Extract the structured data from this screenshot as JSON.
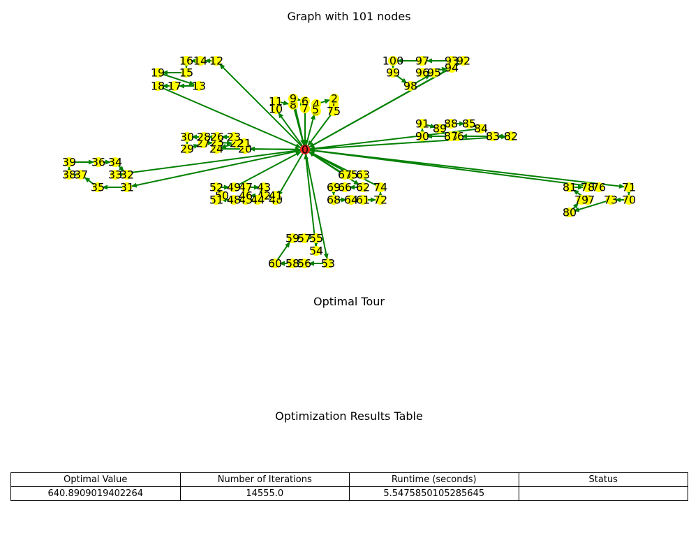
{
  "graph_title": "Graph with 101 nodes",
  "tour_title": "Optimal Tour",
  "table_title": "Optimization Results Table",
  "colors": {
    "depot": "#e8231f",
    "node": "#ffff00",
    "edge": "#008000"
  },
  "results_table": {
    "headers": [
      "Optimal Value",
      "Number of Iterations",
      "Runtime (seconds)",
      "Status"
    ],
    "values": [
      "640.8909019402264",
      "14555.0",
      "5.5475850105285645",
      ""
    ]
  },
  "nodes": [
    {
      "id": "0",
      "depot": true
    },
    {
      "id": "1"
    },
    {
      "id": "2"
    },
    {
      "id": "3"
    },
    {
      "id": "4"
    },
    {
      "id": "5"
    },
    {
      "id": "6"
    },
    {
      "id": "7"
    },
    {
      "id": "8"
    },
    {
      "id": "9"
    },
    {
      "id": "10"
    },
    {
      "id": "11"
    },
    {
      "id": "12"
    },
    {
      "id": "13"
    },
    {
      "id": "14"
    },
    {
      "id": "15"
    },
    {
      "id": "16"
    },
    {
      "id": "17"
    },
    {
      "id": "18"
    },
    {
      "id": "19"
    },
    {
      "id": "20"
    },
    {
      "id": "21"
    },
    {
      "id": "22"
    },
    {
      "id": "23"
    },
    {
      "id": "24"
    },
    {
      "id": "25"
    },
    {
      "id": "26"
    },
    {
      "id": "27"
    },
    {
      "id": "28"
    },
    {
      "id": "29"
    },
    {
      "id": "30"
    },
    {
      "id": "31"
    },
    {
      "id": "32"
    },
    {
      "id": "33"
    },
    {
      "id": "34"
    },
    {
      "id": "35"
    },
    {
      "id": "36"
    },
    {
      "id": "37"
    },
    {
      "id": "38"
    },
    {
      "id": "39"
    },
    {
      "id": "40"
    },
    {
      "id": "41"
    },
    {
      "id": "42"
    },
    {
      "id": "43"
    },
    {
      "id": "44"
    },
    {
      "id": "45"
    },
    {
      "id": "46"
    },
    {
      "id": "47"
    },
    {
      "id": "48"
    },
    {
      "id": "49"
    },
    {
      "id": "50"
    },
    {
      "id": "51"
    },
    {
      "id": "52"
    },
    {
      "id": "53"
    },
    {
      "id": "54"
    },
    {
      "id": "55"
    },
    {
      "id": "56"
    },
    {
      "id": "57"
    },
    {
      "id": "58"
    },
    {
      "id": "59"
    },
    {
      "id": "60"
    },
    {
      "id": "61"
    },
    {
      "id": "62"
    },
    {
      "id": "63"
    },
    {
      "id": "64"
    },
    {
      "id": "65"
    },
    {
      "id": "66"
    },
    {
      "id": "67"
    },
    {
      "id": "68"
    },
    {
      "id": "69"
    },
    {
      "id": "70"
    },
    {
      "id": "71"
    },
    {
      "id": "72"
    },
    {
      "id": "73"
    },
    {
      "id": "74"
    },
    {
      "id": "75"
    },
    {
      "id": "76"
    },
    {
      "id": "77"
    },
    {
      "id": "78"
    },
    {
      "id": "79"
    },
    {
      "id": "80"
    },
    {
      "id": "81"
    },
    {
      "id": "82"
    },
    {
      "id": "83"
    },
    {
      "id": "84"
    },
    {
      "id": "85"
    },
    {
      "id": "86"
    },
    {
      "id": "87"
    },
    {
      "id": "88"
    },
    {
      "id": "89"
    },
    {
      "id": "90"
    },
    {
      "id": "91"
    },
    {
      "id": "92"
    },
    {
      "id": "93"
    },
    {
      "id": "94"
    },
    {
      "id": "95"
    },
    {
      "id": "96"
    },
    {
      "id": "97"
    },
    {
      "id": "98"
    },
    {
      "id": "99"
    },
    {
      "id": "100"
    }
  ],
  "edges": [
    [
      "0",
      "10"
    ],
    [
      "10",
      "11"
    ],
    [
      "11",
      "8"
    ],
    [
      "8",
      "0"
    ],
    [
      "0",
      "9"
    ],
    [
      "9",
      "6"
    ],
    [
      "6",
      "7"
    ],
    [
      "7",
      "0"
    ],
    [
      "0",
      "5"
    ],
    [
      "5",
      "3"
    ],
    [
      "3",
      "4"
    ],
    [
      "4",
      "2"
    ],
    [
      "2",
      "1"
    ],
    [
      "1",
      "75"
    ],
    [
      "75",
      "0"
    ],
    [
      "0",
      "12"
    ],
    [
      "12",
      "14"
    ],
    [
      "14",
      "16"
    ],
    [
      "16",
      "15"
    ],
    [
      "15",
      "19"
    ],
    [
      "19",
      "13"
    ],
    [
      "13",
      "17"
    ],
    [
      "17",
      "18"
    ],
    [
      "18",
      "0"
    ],
    [
      "0",
      "20"
    ],
    [
      "20",
      "21"
    ],
    [
      "21",
      "23"
    ],
    [
      "23",
      "26"
    ],
    [
      "26",
      "28"
    ],
    [
      "28",
      "30"
    ],
    [
      "30",
      "29"
    ],
    [
      "29",
      "27"
    ],
    [
      "27",
      "25"
    ],
    [
      "25",
      "22"
    ],
    [
      "22",
      "24"
    ],
    [
      "24",
      "0"
    ],
    [
      "0",
      "31"
    ],
    [
      "31",
      "35"
    ],
    [
      "35",
      "37"
    ],
    [
      "37",
      "38"
    ],
    [
      "38",
      "39"
    ],
    [
      "39",
      "36"
    ],
    [
      "36",
      "34"
    ],
    [
      "34",
      "32"
    ],
    [
      "32",
      "33"
    ],
    [
      "33",
      "0"
    ],
    [
      "0",
      "40"
    ],
    [
      "40",
      "41"
    ],
    [
      "41",
      "42"
    ],
    [
      "42",
      "46"
    ],
    [
      "46",
      "47"
    ],
    [
      "47",
      "43"
    ],
    [
      "43",
      "44"
    ],
    [
      "44",
      "45"
    ],
    [
      "45",
      "48"
    ],
    [
      "48",
      "51"
    ],
    [
      "51",
      "50"
    ],
    [
      "50",
      "52"
    ],
    [
      "52",
      "49"
    ],
    [
      "49",
      "0"
    ],
    [
      "0",
      "53"
    ],
    [
      "53",
      "56"
    ],
    [
      "56",
      "58"
    ],
    [
      "58",
      "60"
    ],
    [
      "60",
      "59"
    ],
    [
      "59",
      "57"
    ],
    [
      "57",
      "55"
    ],
    [
      "55",
      "54"
    ],
    [
      "54",
      "0"
    ],
    [
      "0",
      "65"
    ],
    [
      "65",
      "63"
    ],
    [
      "63",
      "67"
    ],
    [
      "67",
      "0"
    ],
    [
      "0",
      "62"
    ],
    [
      "62",
      "66"
    ],
    [
      "66",
      "69"
    ],
    [
      "69",
      "68"
    ],
    [
      "68",
      "64"
    ],
    [
      "64",
      "61"
    ],
    [
      "61",
      "72"
    ],
    [
      "72",
      "74"
    ],
    [
      "74",
      "0"
    ],
    [
      "0",
      "71"
    ],
    [
      "71",
      "70"
    ],
    [
      "70",
      "73"
    ],
    [
      "73",
      "80"
    ],
    [
      "80",
      "79"
    ],
    [
      "79",
      "77"
    ],
    [
      "77",
      "81"
    ],
    [
      "81",
      "78"
    ],
    [
      "78",
      "76"
    ],
    [
      "76",
      "0"
    ],
    [
      "0",
      "82"
    ],
    [
      "82",
      "83"
    ],
    [
      "83",
      "86"
    ],
    [
      "86",
      "87"
    ],
    [
      "87",
      "90"
    ],
    [
      "90",
      "91"
    ],
    [
      "91",
      "89"
    ],
    [
      "89",
      "88"
    ],
    [
      "88",
      "85"
    ],
    [
      "85",
      "84"
    ],
    [
      "84",
      "0"
    ],
    [
      "0",
      "92"
    ],
    [
      "92",
      "93"
    ],
    [
      "93",
      "97"
    ],
    [
      "97",
      "100"
    ],
    [
      "100",
      "99"
    ],
    [
      "99",
      "98"
    ],
    [
      "98",
      "95"
    ],
    [
      "95",
      "96"
    ],
    [
      "96",
      "94"
    ],
    [
      "94",
      "0"
    ]
  ]
}
